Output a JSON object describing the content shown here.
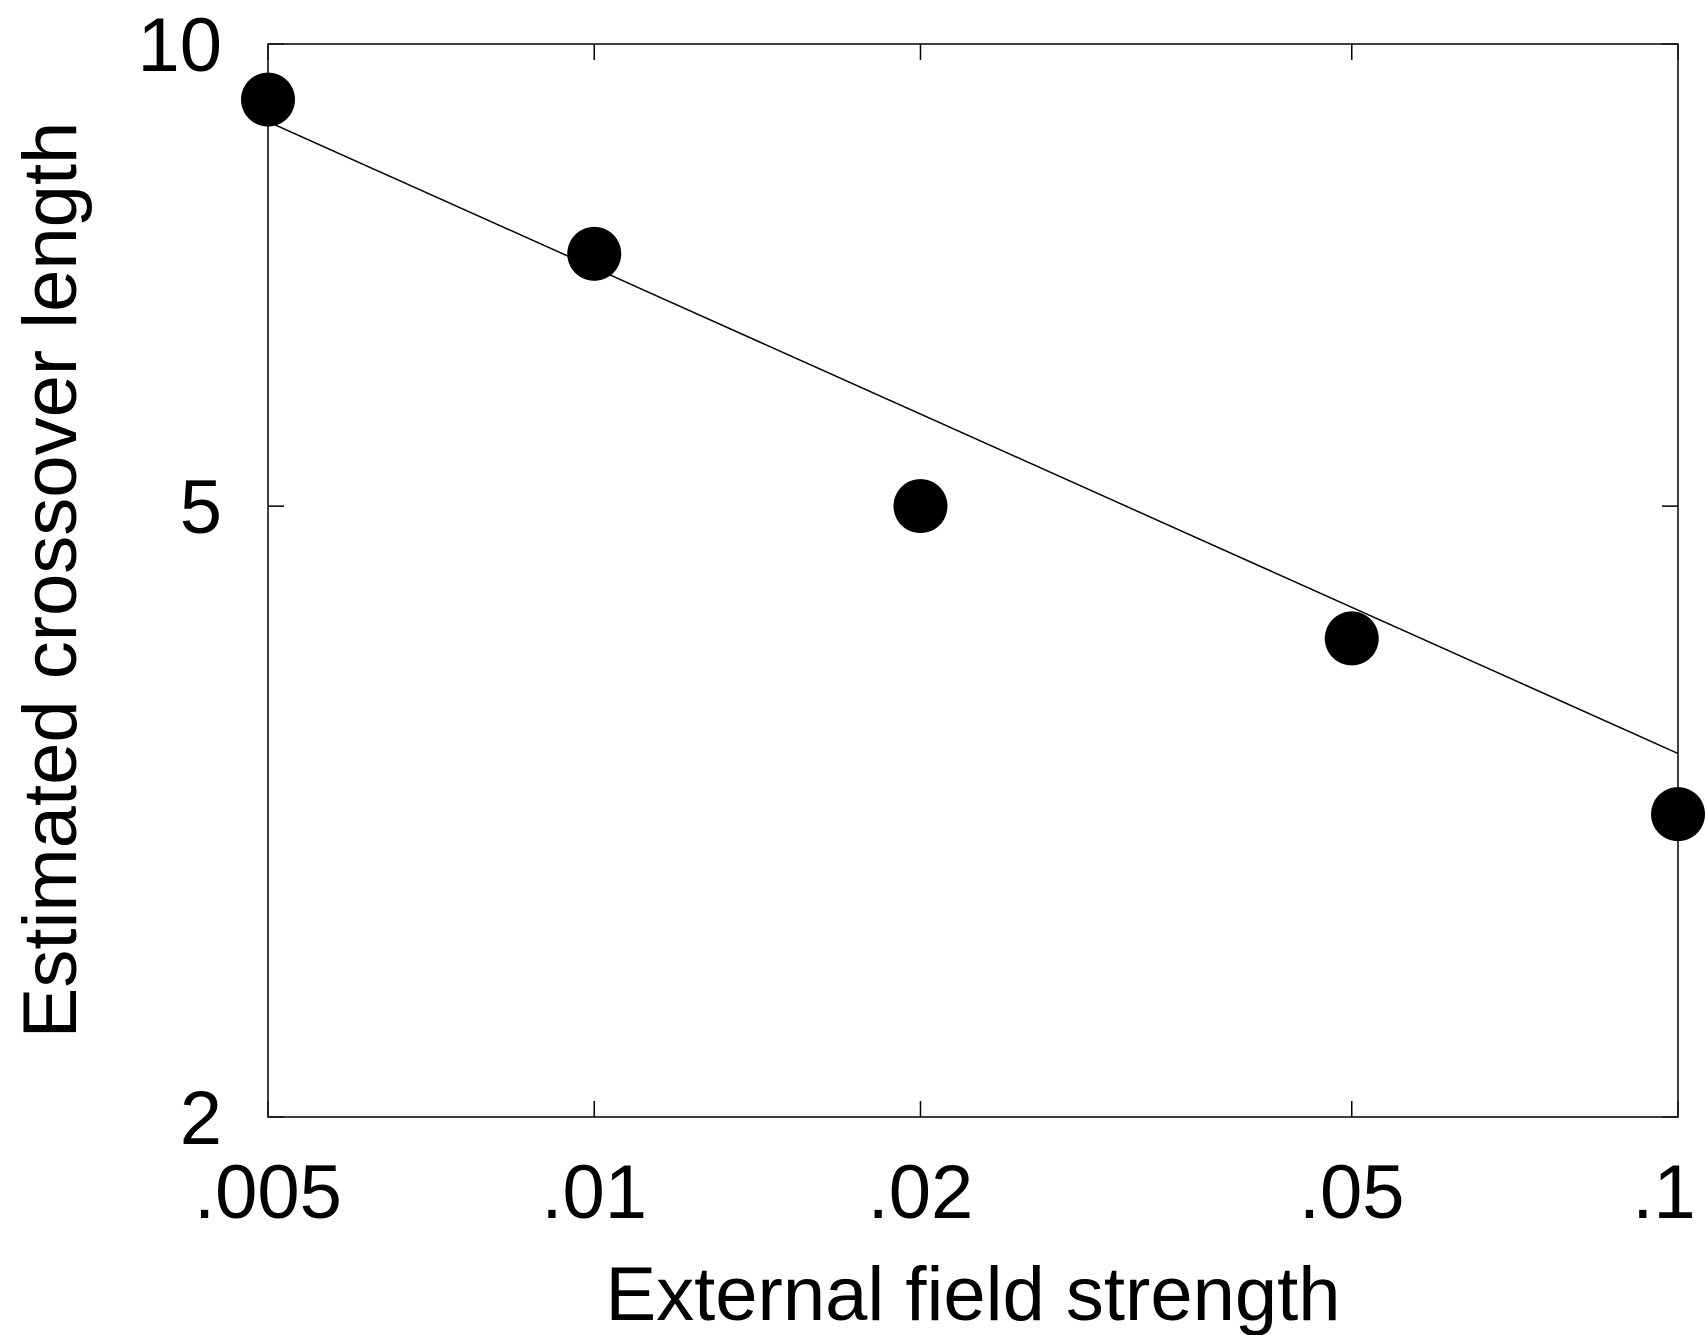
{
  "chart_data": {
    "type": "scatter",
    "title": "",
    "xlabel": "External field strength",
    "ylabel": "Estimated crossover length",
    "x_scale": "log",
    "y_scale": "log",
    "xlim": [
      0.005,
      0.1
    ],
    "ylim": [
      2,
      10
    ],
    "x_ticks": [
      {
        "value": 0.005,
        "label": ".005"
      },
      {
        "value": 0.01,
        "label": ".01"
      },
      {
        "value": 0.02,
        "label": ".02"
      },
      {
        "value": 0.05,
        "label": ".05"
      },
      {
        "value": 0.1,
        "label": ".1"
      }
    ],
    "y_ticks": [
      {
        "value": 2,
        "label": "2"
      },
      {
        "value": 5,
        "label": "5"
      },
      {
        "value": 10,
        "label": "10"
      }
    ],
    "points": {
      "x": [
        0.005,
        0.01,
        0.02,
        0.05,
        0.1
      ],
      "y": [
        9.2,
        7.3,
        5.0,
        4.1,
        3.15
      ]
    },
    "fit_line": {
      "x": [
        0.005,
        0.1
      ],
      "y": [
        8.9,
        3.45
      ]
    },
    "grid": false,
    "legend": "none",
    "colors": {
      "marker": "#000000",
      "line": "#000000",
      "axes": "#000000"
    }
  }
}
